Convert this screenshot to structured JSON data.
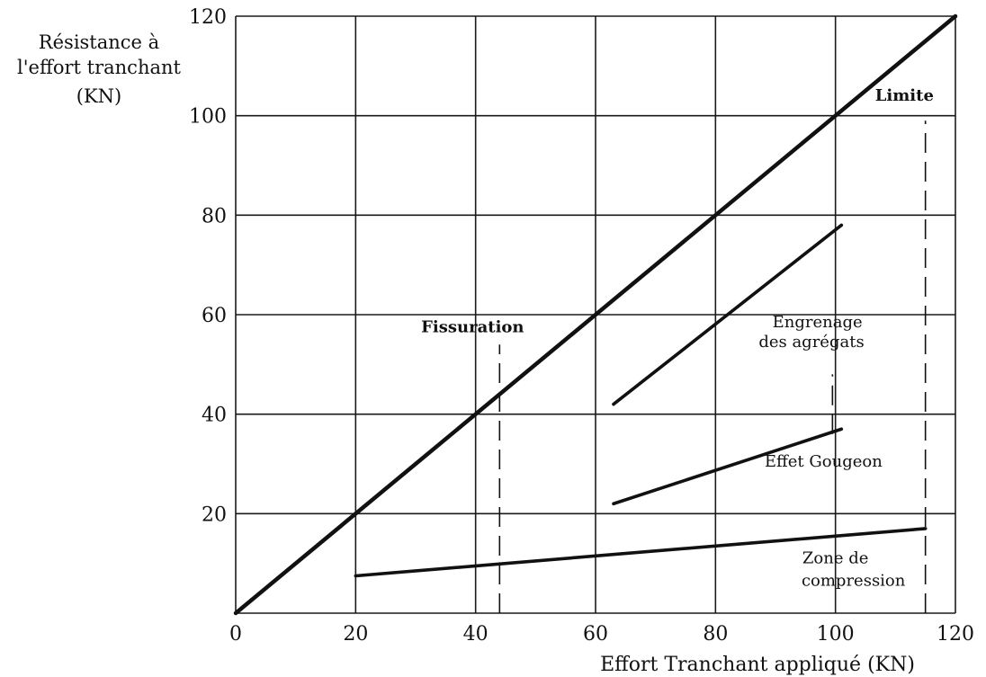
{
  "chart_data": {
    "type": "line",
    "ylabel_lines": [
      "Résistance à",
      "l'effort tranchant",
      "(KN)"
    ],
    "xlabel": "Effort Tranchant appliqué (KN)",
    "xlim": [
      0,
      120
    ],
    "ylim": [
      0,
      120
    ],
    "xticks": [
      0,
      20,
      40,
      60,
      80,
      100,
      120
    ],
    "yticks": [
      20,
      40,
      60,
      80,
      100,
      120
    ],
    "grid": true,
    "series": [
      {
        "id": "total",
        "x": [
          0,
          120
        ],
        "y": [
          0,
          120
        ]
      },
      {
        "id": "engrenage",
        "x": [
          63,
          101
        ],
        "y": [
          42,
          78
        ]
      },
      {
        "id": "gougeon",
        "x": [
          63,
          101
        ],
        "y": [
          22,
          37
        ]
      },
      {
        "id": "compression",
        "x": [
          20,
          115
        ],
        "y": [
          7.5,
          17
        ]
      }
    ],
    "annotations": [
      {
        "id": "fissuration",
        "text": "Fissuration",
        "bold": true,
        "x": 39.5,
        "y": 56.5
      },
      {
        "id": "limite",
        "text": "Limite",
        "bold": true,
        "x": 111.5,
        "y": 103
      },
      {
        "id": "engrenage-1",
        "text": "Engrenage",
        "bold": false,
        "x": 97,
        "y": 57.5
      },
      {
        "id": "engrenage-2",
        "text": "des agrégats",
        "bold": false,
        "x": 96,
        "y": 53.5
      },
      {
        "id": "gougeon",
        "text": "Effet Gougeon",
        "bold": false,
        "x": 98,
        "y": 29.5
      },
      {
        "id": "compression-1",
        "text": "Zone de",
        "bold": false,
        "x": 100,
        "y": 10
      },
      {
        "id": "compression-2",
        "text": "compression",
        "bold": false,
        "x": 103,
        "y": 5.5
      }
    ],
    "markers": [
      {
        "id": "fissuration",
        "x": 44,
        "y_from": 0,
        "y_to": 54
      },
      {
        "id": "limite",
        "x": 115,
        "y_from": 0,
        "y_to": 99
      },
      {
        "id": "x100-tick",
        "x": 99.5,
        "y_from": 36,
        "y_to": 48
      }
    ]
  }
}
